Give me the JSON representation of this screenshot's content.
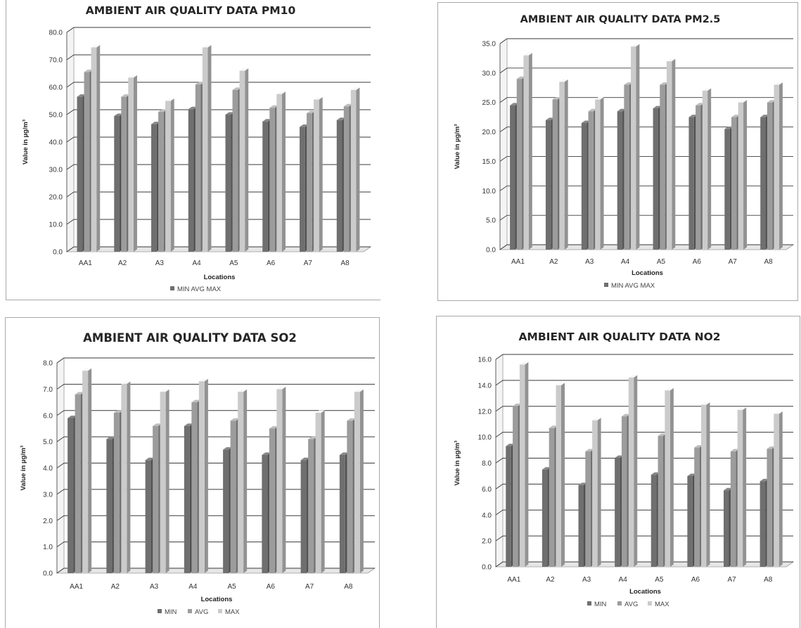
{
  "colors": {
    "min": "#6f6f6f",
    "avg": "#9c9c9c",
    "max": "#cbcbcb",
    "grid": "#3a3a3a",
    "wall": "#e6e6e6"
  },
  "chart_data": [
    {
      "type": "bar",
      "title": "AMBIENT AIR QUALITY DATA PM10",
      "xlabel": "Locations",
      "ylabel": "Value in µg/m³",
      "ylim": [
        0,
        80
      ],
      "yticks": [
        "0.0",
        "10.0",
        "20.0",
        "30.0",
        "40.0",
        "50.0",
        "60.0",
        "70.0",
        "80.0"
      ],
      "categories": [
        "AA1",
        "A2",
        "A3",
        "A4",
        "A5",
        "A6",
        "A7",
        "A8"
      ],
      "series": [
        {
          "name": "MIN",
          "values": [
            56.5,
            49.5,
            46.5,
            52.0,
            50.0,
            47.5,
            45.5,
            48.0
          ]
        },
        {
          "name": "AVG",
          "values": [
            65.5,
            56.5,
            51.0,
            61.0,
            59.0,
            52.5,
            50.5,
            53.0
          ]
        },
        {
          "name": "MAX",
          "values": [
            74.5,
            63.5,
            55.0,
            74.5,
            66.0,
            57.5,
            55.5,
            59.0
          ]
        }
      ],
      "legend_text": "MIN AVG MAX",
      "legend": "bottom",
      "grid": true
    },
    {
      "type": "bar",
      "title": "AMBIENT AIR QUALITY DATA PM2.5",
      "xlabel": "Locations",
      "ylabel": "Value in µg/m³",
      "ylim": [
        0,
        35
      ],
      "yticks": [
        "0.0",
        "5.0",
        "10.0",
        "15.0",
        "20.0",
        "25.0",
        "30.0",
        "35.0"
      ],
      "categories": [
        "AA1",
        "A2",
        "A3",
        "A4",
        "A5",
        "A6",
        "A7",
        "A8"
      ],
      "series": [
        {
          "name": "MIN",
          "values": [
            24.5,
            22.0,
            21.5,
            23.5,
            24.0,
            22.5,
            20.5,
            22.5
          ]
        },
        {
          "name": "AVG",
          "values": [
            29.0,
            25.5,
            23.5,
            28.0,
            28.0,
            24.5,
            22.5,
            25.0
          ]
        },
        {
          "name": "MAX",
          "values": [
            33.0,
            28.5,
            25.5,
            34.5,
            32.0,
            27.0,
            25.0,
            28.0
          ]
        }
      ],
      "legend_text": "MIN AVG MAX",
      "legend": "bottom",
      "grid": true
    },
    {
      "type": "bar",
      "title": "AMBIENT AIR QUALITY DATA SO2",
      "xlabel": "Locations",
      "ylabel": "Value in µg/m³",
      "ylim": [
        0,
        8
      ],
      "yticks": [
        "0.0",
        "1.0",
        "2.0",
        "3.0",
        "4.0",
        "5.0",
        "6.0",
        "7.0",
        "8.0"
      ],
      "categories": [
        "AA1",
        "A2",
        "A3",
        "A4",
        "A5",
        "A6",
        "A7",
        "A8"
      ],
      "series": [
        {
          "name": "MIN",
          "values": [
            5.9,
            5.1,
            4.3,
            5.6,
            4.7,
            4.5,
            4.3,
            4.5
          ]
        },
        {
          "name": "AVG",
          "values": [
            6.8,
            6.1,
            5.6,
            6.5,
            5.8,
            5.5,
            5.1,
            5.8
          ]
        },
        {
          "name": "MAX",
          "values": [
            7.7,
            7.2,
            6.9,
            7.3,
            6.9,
            7.0,
            6.1,
            6.9
          ]
        }
      ],
      "legend": "bottom",
      "grid": true
    },
    {
      "type": "bar",
      "title": "AMBIENT AIR QUALITY DATA NO2",
      "xlabel": "Locations",
      "ylabel": "Value in µg/m³",
      "ylim": [
        0,
        16
      ],
      "yticks": [
        "0.0",
        "2.0",
        "4.0",
        "6.0",
        "8.0",
        "10.0",
        "12.0",
        "14.0",
        "16.0"
      ],
      "categories": [
        "AA1",
        "A2",
        "A3",
        "A4",
        "A5",
        "A6",
        "A7",
        "A8"
      ],
      "series": [
        {
          "name": "MIN",
          "values": [
            9.3,
            7.5,
            6.3,
            8.4,
            7.1,
            7.0,
            5.9,
            6.6
          ]
        },
        {
          "name": "AVG",
          "values": [
            12.4,
            10.7,
            8.9,
            11.6,
            10.1,
            9.2,
            8.9,
            9.1
          ]
        },
        {
          "name": "MAX",
          "values": [
            15.6,
            14.0,
            11.3,
            14.6,
            13.6,
            12.5,
            12.1,
            11.8
          ]
        }
      ],
      "legend": "bottom",
      "grid": true
    }
  ]
}
